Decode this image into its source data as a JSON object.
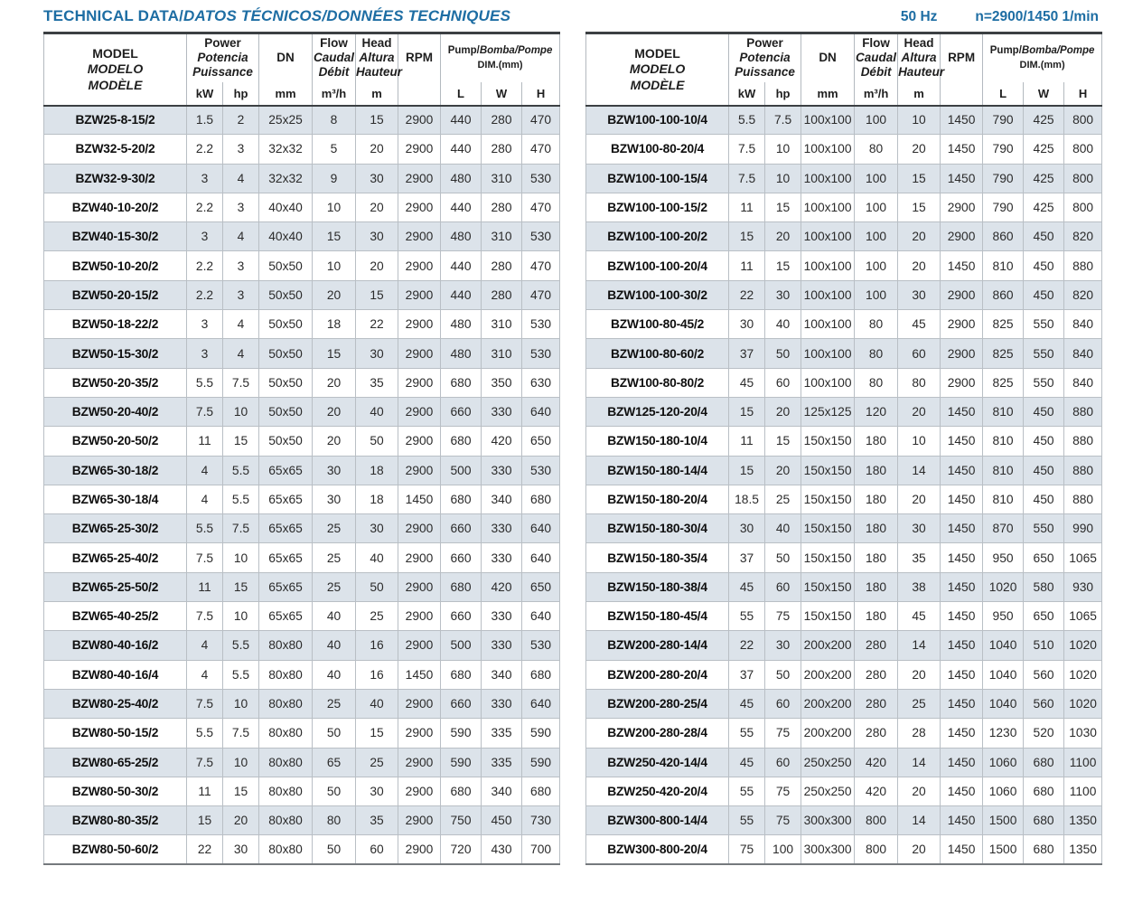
{
  "page": {
    "title_main": "TECHNICAL DATA/",
    "title_rest": "DATOS TÉCNICOS/DONNÉES TECHNIQUES",
    "frequency": "50 Hz",
    "speed": "n=2900/1450 1/min"
  },
  "colors": {
    "accent_blue": "#1d6da3",
    "row_shade": "#dce3ea",
    "grid_line": "#b9bfc5",
    "heavy_rule": "#3c4043"
  },
  "table_header": {
    "model": [
      "MODEL",
      "MODELO",
      "MODÈLE"
    ],
    "power": [
      "Power",
      "Potencia",
      "Puissance"
    ],
    "power_units": [
      "kW",
      "hp"
    ],
    "dn": "DN",
    "dn_unit": "mm",
    "flow": [
      "Flow",
      "Caudal",
      "Débit"
    ],
    "flow_unit": "m³/h",
    "head": [
      "Head",
      "Altura",
      "Hauteur"
    ],
    "head_unit": "m",
    "rpm": "RPM",
    "pump_dim_en": "Pump/",
    "pump_dim_rest": "Bomba/Pompe",
    "dim_label": "DIM.(mm)",
    "dim_units": [
      "L",
      "W",
      "H"
    ]
  },
  "tables": {
    "left": {
      "rows": [
        [
          "BZW25-8-15/2",
          "1.5",
          "2",
          "25x25",
          "8",
          "15",
          "2900",
          "440",
          "280",
          "470"
        ],
        [
          "BZW32-5-20/2",
          "2.2",
          "3",
          "32x32",
          "5",
          "20",
          "2900",
          "440",
          "280",
          "470"
        ],
        [
          "BZW32-9-30/2",
          "3",
          "4",
          "32x32",
          "9",
          "30",
          "2900",
          "480",
          "310",
          "530"
        ],
        [
          "BZW40-10-20/2",
          "2.2",
          "3",
          "40x40",
          "10",
          "20",
          "2900",
          "440",
          "280",
          "470"
        ],
        [
          "BZW40-15-30/2",
          "3",
          "4",
          "40x40",
          "15",
          "30",
          "2900",
          "480",
          "310",
          "530"
        ],
        [
          "BZW50-10-20/2",
          "2.2",
          "3",
          "50x50",
          "10",
          "20",
          "2900",
          "440",
          "280",
          "470"
        ],
        [
          "BZW50-20-15/2",
          "2.2",
          "3",
          "50x50",
          "20",
          "15",
          "2900",
          "440",
          "280",
          "470"
        ],
        [
          "BZW50-18-22/2",
          "3",
          "4",
          "50x50",
          "18",
          "22",
          "2900",
          "480",
          "310",
          "530"
        ],
        [
          "BZW50-15-30/2",
          "3",
          "4",
          "50x50",
          "15",
          "30",
          "2900",
          "480",
          "310",
          "530"
        ],
        [
          "BZW50-20-35/2",
          "5.5",
          "7.5",
          "50x50",
          "20",
          "35",
          "2900",
          "680",
          "350",
          "630"
        ],
        [
          "BZW50-20-40/2",
          "7.5",
          "10",
          "50x50",
          "20",
          "40",
          "2900",
          "660",
          "330",
          "640"
        ],
        [
          "BZW50-20-50/2",
          "11",
          "15",
          "50x50",
          "20",
          "50",
          "2900",
          "680",
          "420",
          "650"
        ],
        [
          "BZW65-30-18/2",
          "4",
          "5.5",
          "65x65",
          "30",
          "18",
          "2900",
          "500",
          "330",
          "530"
        ],
        [
          "BZW65-30-18/4",
          "4",
          "5.5",
          "65x65",
          "30",
          "18",
          "1450",
          "680",
          "340",
          "680"
        ],
        [
          "BZW65-25-30/2",
          "5.5",
          "7.5",
          "65x65",
          "25",
          "30",
          "2900",
          "660",
          "330",
          "640"
        ],
        [
          "BZW65-25-40/2",
          "7.5",
          "10",
          "65x65",
          "25",
          "40",
          "2900",
          "660",
          "330",
          "640"
        ],
        [
          "BZW65-25-50/2",
          "11",
          "15",
          "65x65",
          "25",
          "50",
          "2900",
          "680",
          "420",
          "650"
        ],
        [
          "BZW65-40-25/2",
          "7.5",
          "10",
          "65x65",
          "40",
          "25",
          "2900",
          "660",
          "330",
          "640"
        ],
        [
          "BZW80-40-16/2",
          "4",
          "5.5",
          "80x80",
          "40",
          "16",
          "2900",
          "500",
          "330",
          "530"
        ],
        [
          "BZW80-40-16/4",
          "4",
          "5.5",
          "80x80",
          "40",
          "16",
          "1450",
          "680",
          "340",
          "680"
        ],
        [
          "BZW80-25-40/2",
          "7.5",
          "10",
          "80x80",
          "25",
          "40",
          "2900",
          "660",
          "330",
          "640"
        ],
        [
          "BZW80-50-15/2",
          "5.5",
          "7.5",
          "80x80",
          "50",
          "15",
          "2900",
          "590",
          "335",
          "590"
        ],
        [
          "BZW80-65-25/2",
          "7.5",
          "10",
          "80x80",
          "65",
          "25",
          "2900",
          "590",
          "335",
          "590"
        ],
        [
          "BZW80-50-30/2",
          "11",
          "15",
          "80x80",
          "50",
          "30",
          "2900",
          "680",
          "340",
          "680"
        ],
        [
          "BZW80-80-35/2",
          "15",
          "20",
          "80x80",
          "80",
          "35",
          "2900",
          "750",
          "450",
          "730"
        ],
        [
          "BZW80-50-60/2",
          "22",
          "30",
          "80x80",
          "50",
          "60",
          "2900",
          "720",
          "430",
          "700"
        ]
      ]
    },
    "right": {
      "rows": [
        [
          "BZW100-100-10/4",
          "5.5",
          "7.5",
          "100x100",
          "100",
          "10",
          "1450",
          "790",
          "425",
          "800"
        ],
        [
          "BZW100-80-20/4",
          "7.5",
          "10",
          "100x100",
          "80",
          "20",
          "1450",
          "790",
          "425",
          "800"
        ],
        [
          "BZW100-100-15/4",
          "7.5",
          "10",
          "100x100",
          "100",
          "15",
          "1450",
          "790",
          "425",
          "800"
        ],
        [
          "BZW100-100-15/2",
          "11",
          "15",
          "100x100",
          "100",
          "15",
          "2900",
          "790",
          "425",
          "800"
        ],
        [
          "BZW100-100-20/2",
          "15",
          "20",
          "100x100",
          "100",
          "20",
          "2900",
          "860",
          "450",
          "820"
        ],
        [
          "BZW100-100-20/4",
          "11",
          "15",
          "100x100",
          "100",
          "20",
          "1450",
          "810",
          "450",
          "880"
        ],
        [
          "BZW100-100-30/2",
          "22",
          "30",
          "100x100",
          "100",
          "30",
          "2900",
          "860",
          "450",
          "820"
        ],
        [
          "BZW100-80-45/2",
          "30",
          "40",
          "100x100",
          "80",
          "45",
          "2900",
          "825",
          "550",
          "840"
        ],
        [
          "BZW100-80-60/2",
          "37",
          "50",
          "100x100",
          "80",
          "60",
          "2900",
          "825",
          "550",
          "840"
        ],
        [
          "BZW100-80-80/2",
          "45",
          "60",
          "100x100",
          "80",
          "80",
          "2900",
          "825",
          "550",
          "840"
        ],
        [
          "BZW125-120-20/4",
          "15",
          "20",
          "125x125",
          "120",
          "20",
          "1450",
          "810",
          "450",
          "880"
        ],
        [
          "BZW150-180-10/4",
          "11",
          "15",
          "150x150",
          "180",
          "10",
          "1450",
          "810",
          "450",
          "880"
        ],
        [
          "BZW150-180-14/4",
          "15",
          "20",
          "150x150",
          "180",
          "14",
          "1450",
          "810",
          "450",
          "880"
        ],
        [
          "BZW150-180-20/4",
          "18.5",
          "25",
          "150x150",
          "180",
          "20",
          "1450",
          "810",
          "450",
          "880"
        ],
        [
          "BZW150-180-30/4",
          "30",
          "40",
          "150x150",
          "180",
          "30",
          "1450",
          "870",
          "550",
          "990"
        ],
        [
          "BZW150-180-35/4",
          "37",
          "50",
          "150x150",
          "180",
          "35",
          "1450",
          "950",
          "650",
          "1065"
        ],
        [
          "BZW150-180-38/4",
          "45",
          "60",
          "150x150",
          "180",
          "38",
          "1450",
          "1020",
          "580",
          "930"
        ],
        [
          "BZW150-180-45/4",
          "55",
          "75",
          "150x150",
          "180",
          "45",
          "1450",
          "950",
          "650",
          "1065"
        ],
        [
          "BZW200-280-14/4",
          "22",
          "30",
          "200x200",
          "280",
          "14",
          "1450",
          "1040",
          "510",
          "1020"
        ],
        [
          "BZW200-280-20/4",
          "37",
          "50",
          "200x200",
          "280",
          "20",
          "1450",
          "1040",
          "560",
          "1020"
        ],
        [
          "BZW200-280-25/4",
          "45",
          "60",
          "200x200",
          "280",
          "25",
          "1450",
          "1040",
          "560",
          "1020"
        ],
        [
          "BZW200-280-28/4",
          "55",
          "75",
          "200x200",
          "280",
          "28",
          "1450",
          "1230",
          "520",
          "1030"
        ],
        [
          "BZW250-420-14/4",
          "45",
          "60",
          "250x250",
          "420",
          "14",
          "1450",
          "1060",
          "680",
          "1100"
        ],
        [
          "BZW250-420-20/4",
          "55",
          "75",
          "250x250",
          "420",
          "20",
          "1450",
          "1060",
          "680",
          "1100"
        ],
        [
          "BZW300-800-14/4",
          "55",
          "75",
          "300x300",
          "800",
          "14",
          "1450",
          "1500",
          "680",
          "1350"
        ],
        [
          "BZW300-800-20/4",
          "75",
          "100",
          "300x300",
          "800",
          "20",
          "1450",
          "1500",
          "680",
          "1350"
        ]
      ]
    }
  }
}
